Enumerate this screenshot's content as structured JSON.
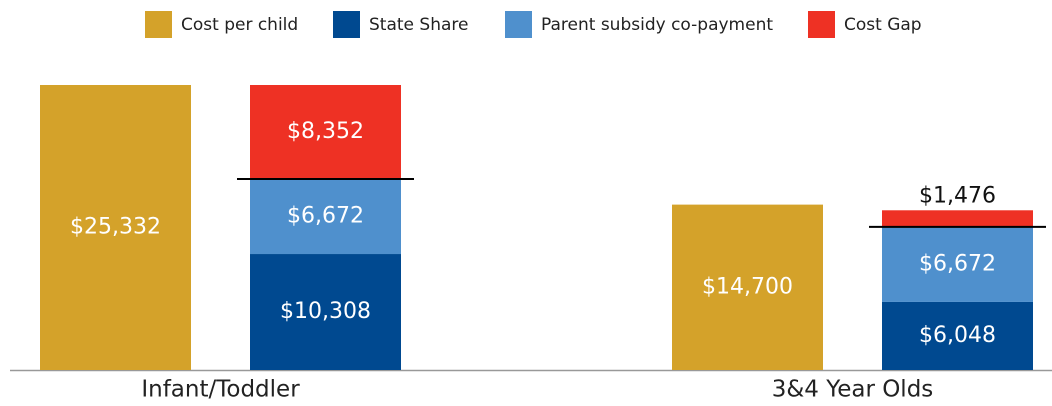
{
  "chart_data": {
    "type": "bar",
    "categories": [
      "Infant/Toddler",
      "3&4 Year Olds"
    ],
    "series": [
      {
        "name": "Cost per child",
        "color": "#d4a22a",
        "values": [
          25332,
          14700
        ],
        "value_labels": [
          "$25,332",
          "$14,700"
        ]
      },
      {
        "name": "State Share",
        "color": "#004990",
        "values": [
          10308,
          6048
        ],
        "value_labels": [
          "$10,308",
          "$6,048"
        ]
      },
      {
        "name": "Parent subsidy co-payment",
        "color": "#4f90cd",
        "values": [
          6672,
          6672
        ],
        "value_labels": [
          "$6,672",
          "$6,672"
        ]
      },
      {
        "name": "Cost Gap",
        "color": "#ee3124",
        "values": [
          8352,
          1476
        ],
        "value_labels": [
          "$8,352",
          "$1,476"
        ]
      }
    ]
  }
}
